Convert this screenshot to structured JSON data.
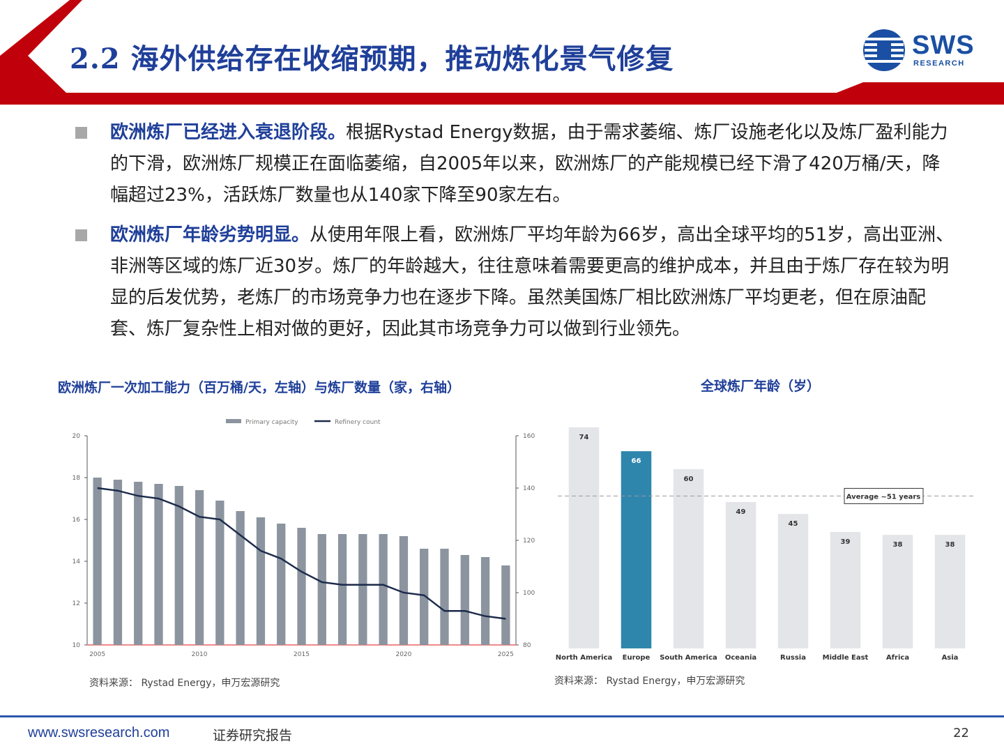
{
  "header": {
    "title": "2.2 海外供给存在收缩预期，推动炼化景气修复",
    "logo_text": "SWS",
    "logo_sub": "RESEARCH"
  },
  "bullets": [
    {
      "bold": "欧洲炼厂已经进入衰退阶段。",
      "text": "根据Rystad  Energy数据，由于需求萎缩、炼厂设施老化以及炼厂盈利能力的下滑，欧洲炼厂规模正在面临萎缩，自2005年以来，欧洲炼厂的产能规模已经下滑了420万桶/天，降幅超过23%，活跃炼厂数量也从140家下降至90家左右。"
    },
    {
      "bold": "欧洲炼厂年龄劣势明显。",
      "text": "从使用年限上看，欧洲炼厂平均年龄为66岁，高出全球平均的51岁，高出亚洲、非洲等区域的炼厂近30岁。炼厂的年龄越大，往往意味着需要更高的维护成本，并且由于炼厂存在较为明显的后发优势，老炼厂的市场竞争力也在逐步下降。虽然美国炼厂相比欧洲炼厂平均更老，但在原油配套、炼厂复杂性上相对做的更好，因此其市场竞争力可以做到行业领先。"
    }
  ],
  "chart_data": [
    {
      "type": "bar",
      "title": "欧洲炼厂一次加工能力（百万桶/天，左轴）与炼厂数量（家，右轴）",
      "legend": [
        "Primary capacity",
        "Refinery count"
      ],
      "legend_position": "top",
      "x": [
        2005,
        2006,
        2007,
        2008,
        2009,
        2010,
        2011,
        2012,
        2013,
        2014,
        2015,
        2016,
        2017,
        2018,
        2019,
        2020,
        2021,
        2022,
        2023,
        2024,
        2025
      ],
      "x_ticks": [
        "2005",
        "2010",
        "2015",
        "2020",
        "2025"
      ],
      "series": [
        {
          "name": "Primary capacity",
          "type": "bar",
          "axis": "left",
          "color": "#8b949f",
          "values": [
            18.0,
            17.9,
            17.8,
            17.7,
            17.6,
            17.4,
            16.9,
            16.4,
            16.1,
            15.8,
            15.6,
            15.3,
            15.3,
            15.3,
            15.3,
            15.2,
            14.6,
            14.6,
            14.3,
            14.2,
            13.8
          ]
        },
        {
          "name": "Refinery count",
          "type": "line",
          "axis": "right",
          "color": "#1b2a4a",
          "values": [
            140,
            139,
            137,
            136,
            133,
            129,
            128,
            122,
            116,
            113,
            108,
            104,
            103,
            103,
            103,
            100,
            99,
            93,
            93,
            91,
            90
          ]
        }
      ],
      "ylim_left": [
        10,
        20
      ],
      "yticks_left": [
        "10",
        "12",
        "14",
        "16",
        "18",
        "20"
      ],
      "ylim_right": [
        80,
        160
      ],
      "yticks_right": [
        "80",
        "100",
        "120",
        "140",
        "160"
      ],
      "source": "资料来源： Rystad Energy，申万宏源研究"
    },
    {
      "type": "bar",
      "title": "全球炼厂年龄（岁）",
      "categories": [
        "North America",
        "Europe",
        "South America",
        "Oceania",
        "Russia",
        "Middle East",
        "Africa",
        "Asia"
      ],
      "values": [
        74,
        66,
        60,
        49,
        45,
        39,
        38,
        38
      ],
      "labels": [
        "74",
        "66",
        "60",
        "49",
        "45",
        "39",
        "38",
        "38"
      ],
      "highlight": "Europe",
      "highlight_color": "#2e86ad",
      "bar_color": "#e3e5e8",
      "ylim": [
        0,
        77
      ],
      "reference_line": {
        "value": 51,
        "label": "Average ~51 years"
      },
      "source": "资料来源： Rystad Energy，申万宏源研究"
    }
  ],
  "footer": {
    "url": "www.swsresearch.com",
    "label": "证券研究报告",
    "page": "22"
  },
  "colors": {
    "brand_red": "#c0000b",
    "brand_blue": "#1f3f99"
  }
}
